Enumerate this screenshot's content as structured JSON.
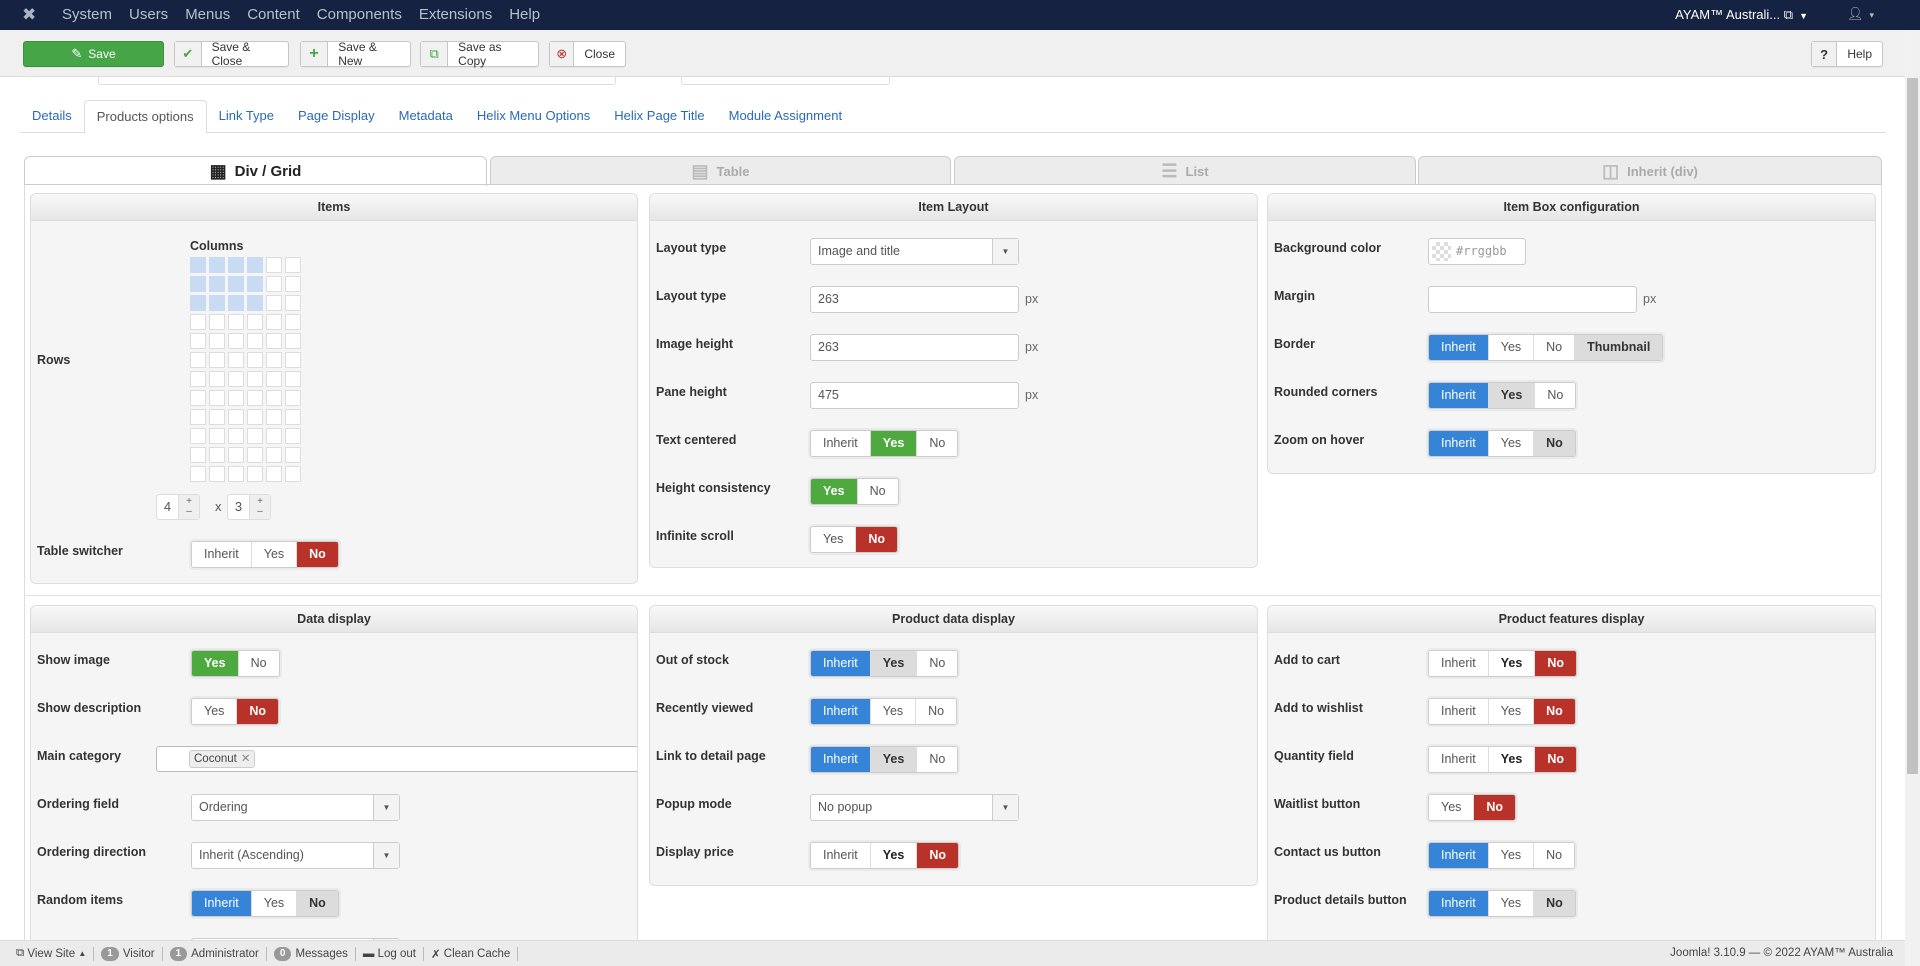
{
  "navbar": {
    "logo_icon": "joomla-icon",
    "menu": [
      "System",
      "Users",
      "Menus",
      "Content",
      "Components",
      "Extensions",
      "Help"
    ],
    "site_name": "AYAM™ Australi...",
    "user_icon": "user-icon"
  },
  "toolbar": {
    "save": "Save",
    "save_close": "Save & Close",
    "save_new": "Save & New",
    "save_copy": "Save as Copy",
    "close": "Close",
    "help": "Help"
  },
  "tabs": [
    "Details",
    "Products options",
    "Link Type",
    "Page Display",
    "Metadata",
    "Helix Menu Options",
    "Helix Page Title",
    "Module Assignment"
  ],
  "active_tab": "Products options",
  "view_tabs": [
    "Div / Grid",
    "Table",
    "List",
    "Inherit (div)"
  ],
  "active_view_tab": "Div / Grid",
  "colors": {
    "inherit_blue": "#3684d8",
    "yes_green": "#4ea93f",
    "no_red": "#b8322a",
    "navbar": "#152242"
  },
  "items_panel": {
    "title": "Items",
    "columns_label": "Columns",
    "rows_label": "Rows",
    "grid_columns": 6,
    "grid_rows": 12,
    "columns_value": "4",
    "rows_value": "3",
    "times": "x",
    "plus": "+",
    "minus": "–",
    "table_switcher": {
      "label": "Table switcher",
      "options": [
        {
          "label": "Inherit",
          "state": ""
        },
        {
          "label": "Yes",
          "state": ""
        },
        {
          "label": "No",
          "state": "red"
        }
      ]
    }
  },
  "panels": [
    {
      "title": "Item Layout",
      "fields": [
        {
          "label": "Layout type",
          "type": "select",
          "value": "Image and title"
        },
        {
          "label": "Layout type",
          "type": "input",
          "value": "263",
          "unit": "px"
        },
        {
          "label": "Image height",
          "type": "input",
          "value": "263",
          "unit": "px"
        },
        {
          "label": "Pane height",
          "type": "input",
          "value": "475",
          "unit": "px"
        },
        {
          "label": "Text centered",
          "type": "toggle",
          "options": [
            {
              "label": "Inherit",
              "state": ""
            },
            {
              "label": "Yes",
              "state": "green"
            },
            {
              "label": "No",
              "state": ""
            }
          ]
        },
        {
          "label": "Height consistency",
          "type": "toggle",
          "options": [
            {
              "label": "Yes",
              "state": "green"
            },
            {
              "label": "No",
              "state": ""
            }
          ]
        },
        {
          "label": "Infinite scroll",
          "type": "toggle",
          "options": [
            {
              "label": "Yes",
              "state": ""
            },
            {
              "label": "No",
              "state": "red"
            }
          ]
        }
      ]
    },
    {
      "title": "Item Box configuration",
      "fields": [
        {
          "label": "Background color",
          "type": "color",
          "placeholder": "#rrggbb"
        },
        {
          "label": "Margin",
          "type": "input",
          "value": "",
          "unit": "px"
        },
        {
          "label": "Border",
          "type": "toggle",
          "options": [
            {
              "label": "Inherit",
              "state": "blue"
            },
            {
              "label": "Yes",
              "state": ""
            },
            {
              "label": "No",
              "state": ""
            },
            {
              "label": "Thumbnail",
              "state": "gray"
            }
          ]
        },
        {
          "label": "Rounded corners",
          "type": "toggle",
          "options": [
            {
              "label": "Inherit",
              "state": "blue"
            },
            {
              "label": "Yes",
              "state": "gray"
            },
            {
              "label": "No",
              "state": ""
            }
          ]
        },
        {
          "label": "Zoom on hover",
          "type": "toggle",
          "options": [
            {
              "label": "Inherit",
              "state": "blue"
            },
            {
              "label": "Yes",
              "state": ""
            },
            {
              "label": "No",
              "state": "gray"
            }
          ]
        }
      ]
    },
    {
      "title": "Data display",
      "fields": [
        {
          "label": "Show image",
          "type": "toggle",
          "options": [
            {
              "label": "Yes",
              "state": "green"
            },
            {
              "label": "No",
              "state": ""
            }
          ]
        },
        {
          "label": "Show description",
          "type": "toggle",
          "options": [
            {
              "label": "Yes",
              "state": ""
            },
            {
              "label": "No",
              "state": "red"
            }
          ]
        },
        {
          "label": "Main category",
          "type": "tags",
          "tags": [
            "Coconut"
          ]
        },
        {
          "label": "Ordering field",
          "type": "select",
          "value": "Ordering"
        },
        {
          "label": "Ordering direction",
          "type": "select",
          "value": "Inherit (Ascending)"
        },
        {
          "label": "Random items",
          "type": "toggle",
          "options": [
            {
              "label": "Inherit",
              "state": "blue"
            },
            {
              "label": "Yes",
              "state": ""
            },
            {
              "label": "No",
              "state": "gray"
            }
          ]
        },
        {
          "label": "",
          "type": "select",
          "value": ""
        }
      ]
    },
    {
      "title": "Product data display",
      "fields": [
        {
          "label": "Out of stock",
          "type": "toggle",
          "options": [
            {
              "label": "Inherit",
              "state": "blue"
            },
            {
              "label": "Yes",
              "state": "gray"
            },
            {
              "label": "No",
              "state": ""
            }
          ]
        },
        {
          "label": "Recently viewed",
          "type": "toggle",
          "options": [
            {
              "label": "Inherit",
              "state": "blue"
            },
            {
              "label": "Yes",
              "state": ""
            },
            {
              "label": "No",
              "state": ""
            }
          ]
        },
        {
          "label": "Link to detail page",
          "type": "toggle",
          "options": [
            {
              "label": "Inherit",
              "state": "blue"
            },
            {
              "label": "Yes",
              "state": "gray"
            },
            {
              "label": "No",
              "state": ""
            }
          ]
        },
        {
          "label": "Popup mode",
          "type": "select",
          "value": "No popup"
        },
        {
          "label": "Display price",
          "type": "toggle",
          "options": [
            {
              "label": "Inherit",
              "state": ""
            },
            {
              "label": "Yes",
              "state": "bold"
            },
            {
              "label": "No",
              "state": "red"
            }
          ]
        }
      ]
    },
    {
      "title": "Product features display",
      "fields": [
        {
          "label": "Add to cart",
          "type": "toggle",
          "options": [
            {
              "label": "Inherit",
              "state": ""
            },
            {
              "label": "Yes",
              "state": "bold"
            },
            {
              "label": "No",
              "state": "red"
            }
          ]
        },
        {
          "label": "Add to wishlist",
          "type": "toggle",
          "options": [
            {
              "label": "Inherit",
              "state": ""
            },
            {
              "label": "Yes",
              "state": ""
            },
            {
              "label": "No",
              "state": "red"
            }
          ]
        },
        {
          "label": "Quantity field",
          "type": "toggle",
          "options": [
            {
              "label": "Inherit",
              "state": ""
            },
            {
              "label": "Yes",
              "state": "bold"
            },
            {
              "label": "No",
              "state": "red"
            }
          ]
        },
        {
          "label": "Waitlist button",
          "type": "toggle",
          "options": [
            {
              "label": "Yes",
              "state": ""
            },
            {
              "label": "No",
              "state": "red"
            }
          ]
        },
        {
          "label": "Contact us button",
          "type": "toggle",
          "options": [
            {
              "label": "Inherit",
              "state": "blue"
            },
            {
              "label": "Yes",
              "state": ""
            },
            {
              "label": "No",
              "state": ""
            }
          ]
        },
        {
          "label": "Product details button",
          "type": "toggle",
          "options": [
            {
              "label": "Inherit",
              "state": "blue"
            },
            {
              "label": "Yes",
              "state": ""
            },
            {
              "label": "No",
              "state": "gray"
            }
          ]
        }
      ]
    }
  ],
  "footer": {
    "view_site": "View Site",
    "visitors_count": "1",
    "visitors_label": "Visitor",
    "admins_count": "1",
    "admins_label": "Administrator",
    "messages_count": "0",
    "messages_label": "Messages",
    "logout": "Log out",
    "clean_cache": "Clean Cache",
    "version": "Joomla! 3.10.9  —  © 2022 AYAM™ Australia"
  }
}
